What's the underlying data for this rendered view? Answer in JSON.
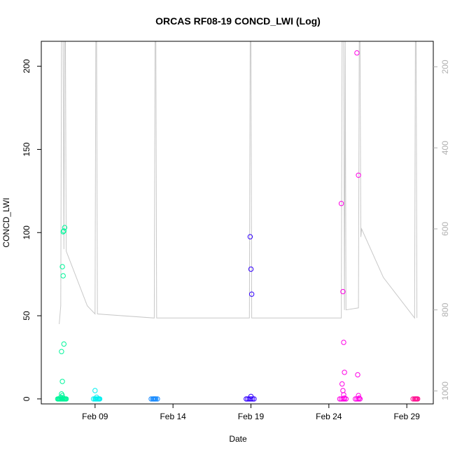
{
  "chart_data": {
    "type": "scatter",
    "title": "ORCAS RF08-19 CONCD_LWI (Log)",
    "xlabel": "Date",
    "ylabel": "CONCD_LWI",
    "x_ticks": [
      "Feb 09",
      "Feb 14",
      "Feb 19",
      "Feb 24",
      "Feb 29"
    ],
    "x_tick_days": [
      9,
      14,
      19,
      24,
      29
    ],
    "xlim": [
      5.55,
      30.7
    ],
    "ylim": [
      -3,
      215
    ],
    "y_ticks": [
      0,
      50,
      100,
      150,
      200
    ],
    "y2_ticks": [
      200,
      400,
      600,
      800,
      1000
    ],
    "y2lim": [
      1032,
      137
    ],
    "y2_color": "#b0b0b0",
    "legend": "none",
    "grid": false,
    "log_line": {
      "color": "#c8c8c8",
      "segments": [
        [
          [
            6.7,
            835
          ],
          [
            6.8,
            790
          ],
          [
            6.85,
            137
          ],
          [
            6.9,
            137
          ],
          [
            6.95,
            137
          ],
          [
            7.0,
            650
          ],
          [
            7.05,
            137
          ],
          [
            7.1,
            137
          ],
          [
            7.15,
            655
          ],
          [
            8.5,
            790
          ],
          [
            9.0,
            810
          ],
          [
            9.05,
            137
          ],
          [
            9.1,
            137
          ],
          [
            9.15,
            810
          ],
          [
            12.8,
            820
          ],
          [
            12.85,
            137
          ],
          [
            12.9,
            137
          ],
          [
            12.95,
            820
          ],
          [
            18.9,
            820
          ],
          [
            18.95,
            137
          ],
          [
            19.0,
            137
          ],
          [
            19.05,
            820
          ],
          [
            24.8,
            820
          ],
          [
            24.85,
            137
          ],
          [
            24.9,
            137
          ],
          [
            24.95,
            137
          ],
          [
            25.0,
            800
          ],
          [
            25.05,
            137
          ],
          [
            25.1,
            800
          ],
          [
            25.9,
            795
          ],
          [
            25.95,
            137
          ],
          [
            26.0,
            137
          ],
          [
            26.05,
            620
          ],
          [
            26.1,
            600
          ],
          [
            27.5,
            720
          ],
          [
            29.5,
            820
          ],
          [
            29.55,
            137
          ],
          [
            29.6,
            137
          ],
          [
            29.65,
            820
          ]
        ]
      ]
    },
    "series": [
      {
        "color": "#00f59a",
        "x": [
          6.6,
          6.65,
          6.7,
          6.75,
          6.8,
          6.85,
          6.9,
          6.95,
          7.0,
          7.05,
          7.1,
          7.15,
          6.8,
          6.9,
          6.85,
          6.95,
          7.0,
          7.05,
          6.9,
          6.95,
          7.0,
          6.85,
          6.9,
          6.95
        ],
        "y": [
          0,
          0,
          0,
          0,
          0,
          0,
          0,
          0,
          0,
          0,
          0,
          0,
          1,
          2,
          3,
          100.5,
          101,
          103,
          79.5,
          74,
          33,
          28.5,
          10.5,
          0.5
        ]
      },
      {
        "color": "#00f0f0",
        "x": [
          8.9,
          9.0,
          9.05,
          9.1,
          9.15,
          9.2,
          9.25,
          9.3,
          9.0,
          9.1
        ],
        "y": [
          0,
          0,
          0,
          0,
          0,
          0,
          0,
          0,
          5,
          1
        ]
      },
      {
        "color": "#1a8cff",
        "x": [
          12.6,
          12.7,
          12.8,
          12.9,
          13.0,
          12.75,
          12.85
        ],
        "y": [
          0,
          0,
          0,
          0,
          0,
          0,
          0
        ]
      },
      {
        "color": "#3300ff",
        "x": [
          18.7,
          18.8,
          18.9,
          19.0,
          19.1,
          19.2,
          18.95,
          19.0,
          19.05,
          19.0
        ],
        "y": [
          0,
          0,
          0,
          0,
          0,
          0,
          97.5,
          78,
          63,
          1.5
        ]
      },
      {
        "color": "#ff00e6",
        "x": [
          24.7,
          24.8,
          24.9,
          25.0,
          25.1,
          24.8,
          24.9,
          24.95,
          25.0,
          24.85,
          24.9,
          24.95,
          25.0,
          25.7,
          25.8,
          25.9,
          26.0,
          25.8,
          25.9,
          25.85,
          25.9,
          25.95
        ],
        "y": [
          0,
          0,
          0,
          0,
          0,
          117.5,
          64.5,
          34,
          16,
          9,
          5,
          2.5,
          0.5,
          0,
          0,
          0,
          0,
          208,
          134.5,
          14.5,
          2,
          0.5
        ]
      },
      {
        "color": "#ff1493",
        "x": [
          29.4,
          29.5,
          29.6,
          29.7,
          29.55,
          29.65
        ],
        "y": [
          0,
          0,
          0,
          0,
          0,
          0
        ]
      }
    ]
  }
}
